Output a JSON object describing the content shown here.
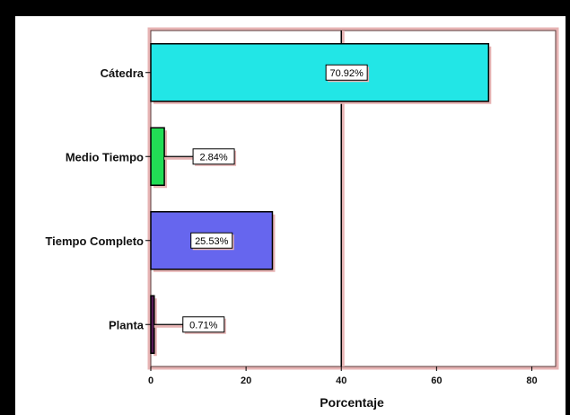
{
  "chart_data": {
    "type": "bar",
    "orientation": "horizontal",
    "categories": [
      "Cátedra",
      "Medio Tiempo",
      "Tiempo Completo",
      "Planta"
    ],
    "values": [
      70.92,
      2.84,
      25.53,
      0.71
    ],
    "data_labels": [
      "70.92%",
      "2.84%",
      "25.53%",
      "0.71%"
    ],
    "bar_colors": [
      "#22e6e6",
      "#22dd55",
      "#6666ee",
      "#551a55"
    ],
    "xlabel": "Porcentaje",
    "xlim": [
      0,
      85
    ],
    "xticks": [
      0,
      20,
      40,
      60,
      80
    ],
    "xtick_labels": [
      "0",
      "20",
      "40",
      "60",
      "80"
    ],
    "reference_line_x": 40,
    "grid": false
  }
}
